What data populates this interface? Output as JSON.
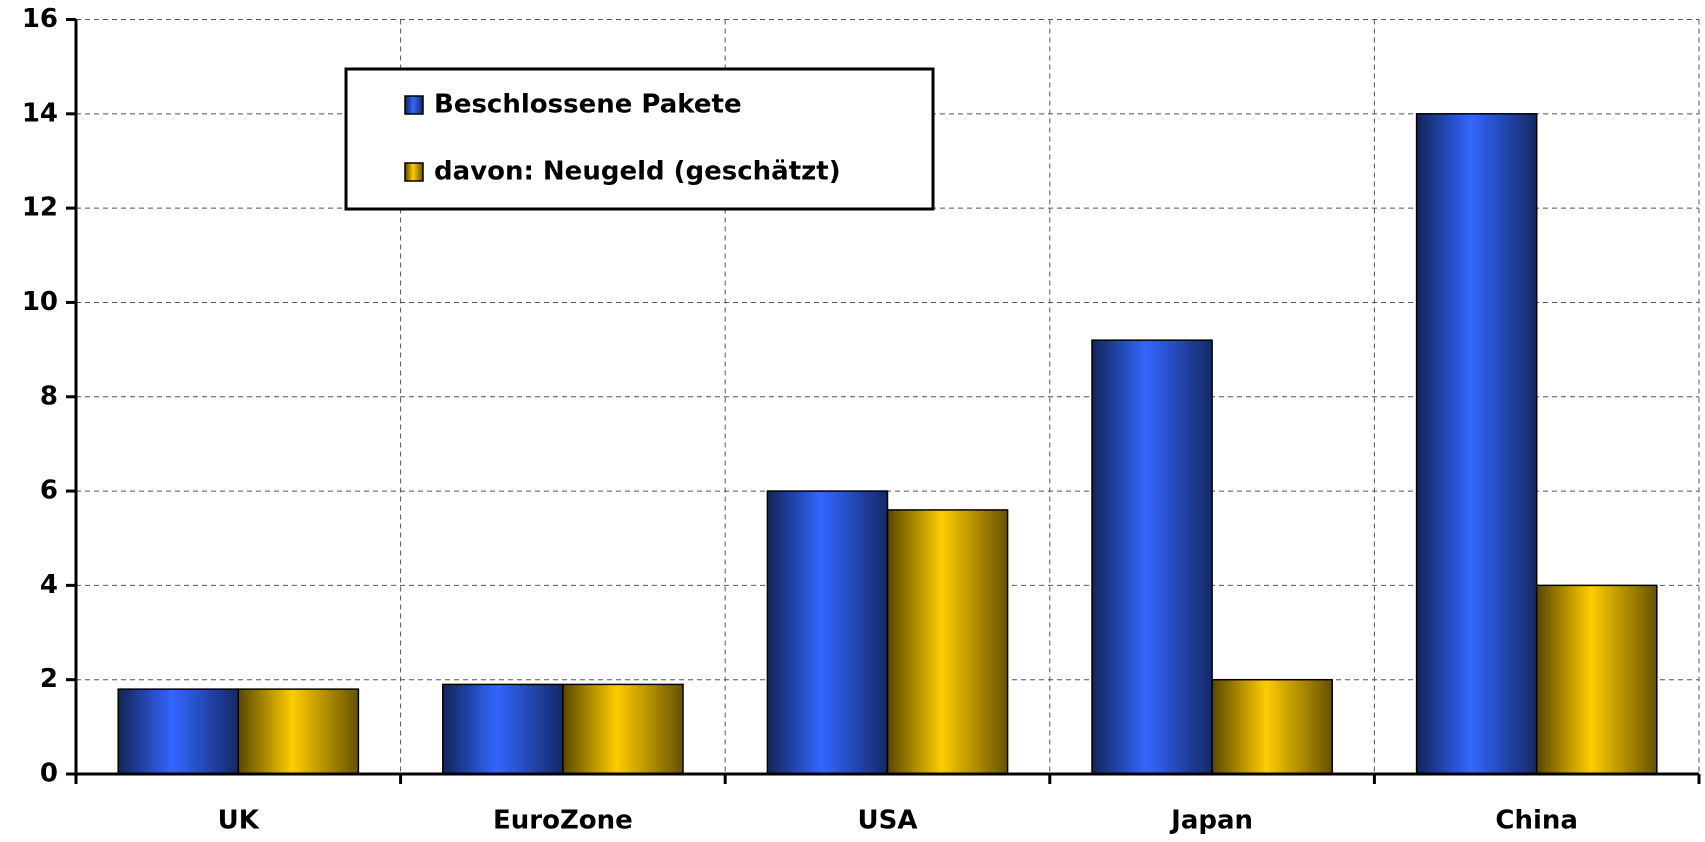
{
  "chart_data": {
    "type": "bar",
    "categories": [
      "UK",
      "EuroZone",
      "USA",
      "Japan",
      "China"
    ],
    "series": [
      {
        "name": "Beschlossene Pakete",
        "color": "#3366ff",
        "values": [
          1.8,
          1.9,
          6,
          9.2,
          14
        ]
      },
      {
        "name": "davon: Neugeld (geschätzt)",
        "color": "#ffcc00",
        "values": [
          1.8,
          1.9,
          5.6,
          2,
          4
        ]
      }
    ],
    "ylim": [
      0,
      16
    ],
    "yticks": [
      0,
      2,
      4,
      6,
      8,
      10,
      12,
      14,
      16
    ],
    "grid": true,
    "legend": "top-left"
  }
}
